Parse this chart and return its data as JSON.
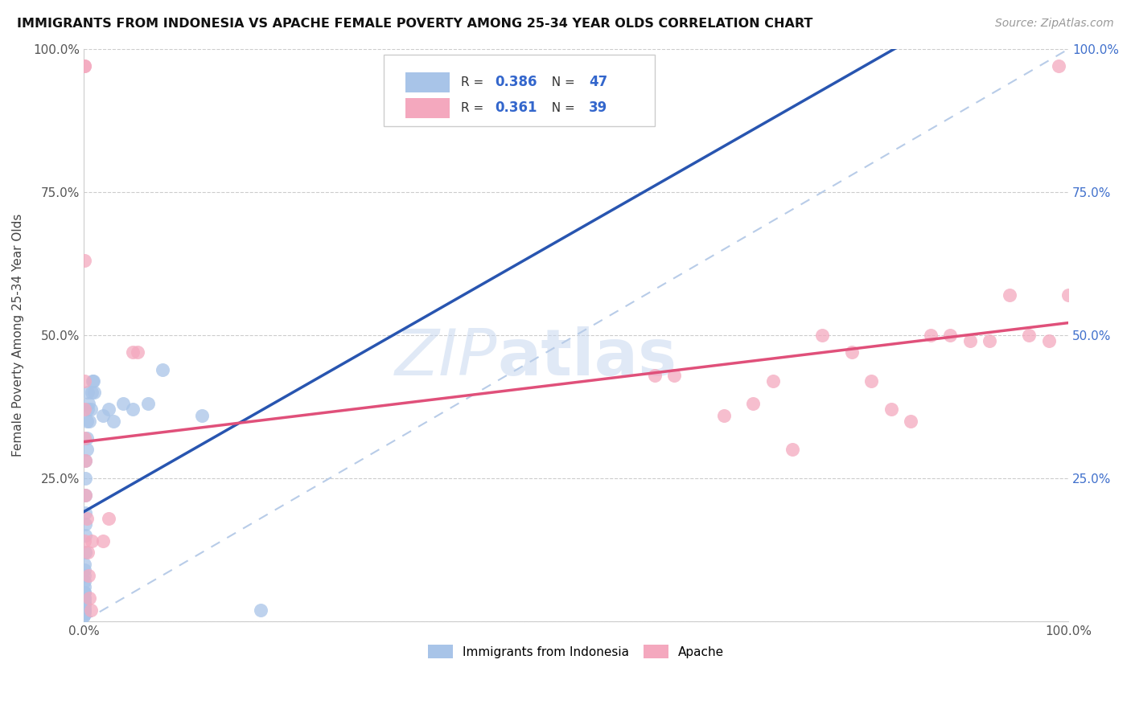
{
  "title": "IMMIGRANTS FROM INDONESIA VS APACHE FEMALE POVERTY AMONG 25-34 YEAR OLDS CORRELATION CHART",
  "source": "Source: ZipAtlas.com",
  "ylabel": "Female Poverty Among 25-34 Year Olds",
  "R_blue": 0.386,
  "N_blue": 47,
  "R_pink": 0.361,
  "N_pink": 39,
  "blue_color": "#a8c4e8",
  "pink_color": "#f4a8be",
  "blue_line_color": "#2855b0",
  "pink_line_color": "#e0507a",
  "diagonal_color": "#b8cce8",
  "blue_x": [
    0.0002,
    0.0003,
    0.0004,
    0.0005,
    0.0006,
    0.0007,
    0.0008,
    0.0009,
    0.001,
    0.001,
    0.001,
    0.001,
    0.001,
    0.001,
    0.001,
    0.001,
    0.001,
    0.001,
    0.001,
    0.0015,
    0.0015,
    0.002,
    0.002,
    0.002,
    0.002,
    0.002,
    0.003,
    0.003,
    0.003,
    0.004,
    0.004,
    0.005,
    0.006,
    0.007,
    0.008,
    0.009,
    0.01,
    0.011,
    0.02,
    0.025,
    0.03,
    0.04,
    0.05,
    0.065,
    0.08,
    0.12,
    0.18
  ],
  "blue_y": [
    0.01,
    0.01,
    0.015,
    0.015,
    0.02,
    0.02,
    0.025,
    0.03,
    0.03,
    0.035,
    0.04,
    0.04,
    0.05,
    0.05,
    0.06,
    0.07,
    0.08,
    0.09,
    0.1,
    0.12,
    0.15,
    0.17,
    0.19,
    0.22,
    0.25,
    0.28,
    0.3,
    0.32,
    0.35,
    0.37,
    0.4,
    0.38,
    0.35,
    0.37,
    0.4,
    0.42,
    0.42,
    0.4,
    0.36,
    0.37,
    0.35,
    0.38,
    0.37,
    0.38,
    0.44,
    0.36,
    0.02
  ],
  "pink_x": [
    0.001,
    0.001,
    0.001,
    0.001,
    0.001,
    0.001,
    0.001,
    0.002,
    0.002,
    0.003,
    0.004,
    0.005,
    0.006,
    0.007,
    0.008,
    0.02,
    0.025,
    0.05,
    0.055,
    0.58,
    0.6,
    0.65,
    0.68,
    0.7,
    0.72,
    0.75,
    0.78,
    0.8,
    0.82,
    0.84,
    0.86,
    0.88,
    0.9,
    0.92,
    0.94,
    0.96,
    0.98,
    1.0,
    0.99
  ],
  "pink_y": [
    0.97,
    0.97,
    0.63,
    0.42,
    0.37,
    0.32,
    0.14,
    0.28,
    0.22,
    0.18,
    0.12,
    0.08,
    0.04,
    0.02,
    0.14,
    0.14,
    0.18,
    0.47,
    0.47,
    0.43,
    0.43,
    0.36,
    0.38,
    0.42,
    0.3,
    0.5,
    0.47,
    0.42,
    0.37,
    0.35,
    0.5,
    0.5,
    0.49,
    0.49,
    0.57,
    0.5,
    0.49,
    0.57,
    0.97
  ],
  "xlim": [
    0,
    1.0
  ],
  "ylim": [
    0,
    1.0
  ],
  "xtick_labels": [
    "0.0%",
    "",
    "",
    "",
    "",
    "",
    "",
    "",
    "",
    "",
    "100.0%"
  ],
  "left_ytick_labels": [
    "",
    "25.0%",
    "50.0%",
    "75.0%",
    "100.0%"
  ],
  "right_ytick_labels": [
    "25.0%",
    "50.0%",
    "75.0%",
    "100.0%"
  ],
  "legend_labels": [
    "Immigrants from Indonesia",
    "Apache"
  ]
}
